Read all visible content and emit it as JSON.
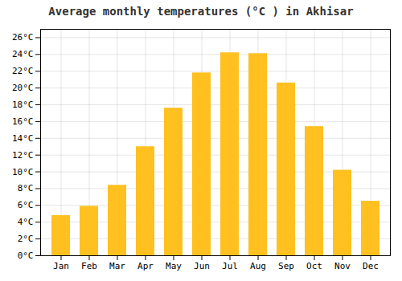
{
  "chart_data": {
    "type": "bar",
    "title": "Average monthly temperatures (°C ) in Akhisar",
    "categories": [
      "Jan",
      "Feb",
      "Mar",
      "Apr",
      "May",
      "Jun",
      "Jul",
      "Aug",
      "Sep",
      "Oct",
      "Nov",
      "Dec"
    ],
    "values": [
      4.8,
      5.9,
      8.4,
      13.0,
      17.6,
      21.8,
      24.2,
      24.1,
      20.6,
      15.4,
      10.2,
      6.5
    ],
    "color": "#FFC020",
    "ylim": [
      0,
      27
    ],
    "yticks": [
      {
        "value": 0,
        "label": "0°C"
      },
      {
        "value": 2,
        "label": "2°C"
      },
      {
        "value": 4,
        "label": "4°C"
      },
      {
        "value": 6,
        "label": "6°C"
      },
      {
        "value": 8,
        "label": "8°C"
      },
      {
        "value": 10,
        "label": "10°C"
      },
      {
        "value": 12,
        "label": "12°C"
      },
      {
        "value": 14,
        "label": "14°C"
      },
      {
        "value": 16,
        "label": "16°C"
      },
      {
        "value": 18,
        "label": "18°C"
      },
      {
        "value": 20,
        "label": "20°C"
      },
      {
        "value": 22,
        "label": "22°C"
      },
      {
        "value": 24,
        "label": "24°C"
      },
      {
        "value": 26,
        "label": "26°C"
      }
    ],
    "grid": true
  }
}
